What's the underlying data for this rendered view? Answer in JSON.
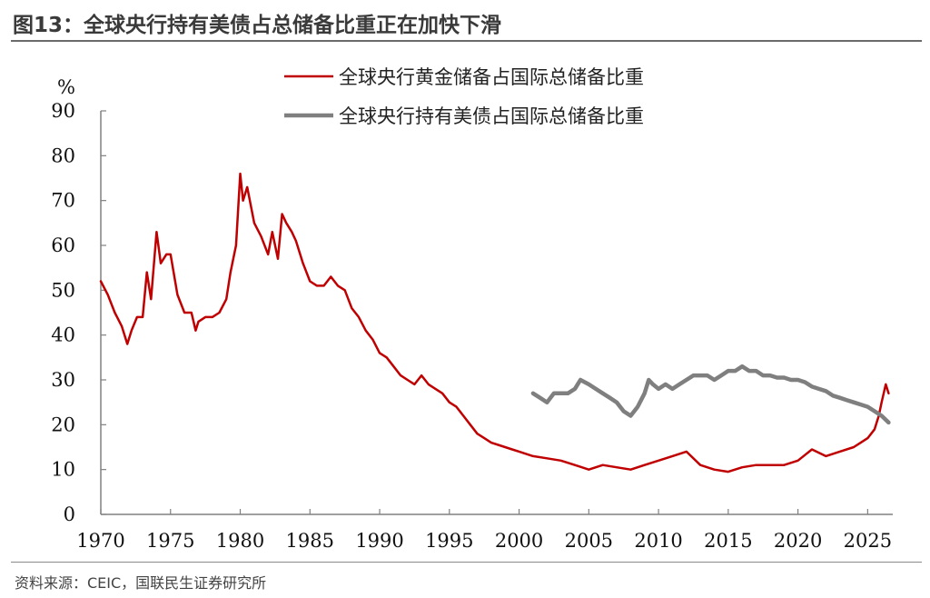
{
  "title": "图13：全球央行持有美债占总储备比重正在加快下滑",
  "source": "资料来源：CEIC，国联民生证券研究所",
  "chart_data": {
    "type": "line",
    "ylabel": "%",
    "ylim": [
      0,
      90
    ],
    "yticks": [
      0,
      10,
      20,
      30,
      40,
      50,
      60,
      70,
      80,
      90
    ],
    "xlim": [
      1970,
      2026.8
    ],
    "xticks": [
      1970,
      1975,
      1980,
      1985,
      1990,
      1995,
      2000,
      2005,
      2010,
      2015,
      2020,
      2025
    ],
    "legend_position": "top-right",
    "grid": false,
    "series": [
      {
        "name": "全球央行黄金储备占国际总储备比重",
        "color": "#c00000",
        "x": [
          1970,
          1970.5,
          1971,
          1971.5,
          1971.9,
          1972.2,
          1972.6,
          1973,
          1973.3,
          1973.6,
          1974,
          1974.3,
          1974.7,
          1975,
          1975.5,
          1976,
          1976.5,
          1976.8,
          1977,
          1977.5,
          1978,
          1978.5,
          1979,
          1979.3,
          1979.7,
          1980,
          1980.2,
          1980.5,
          1981,
          1981.5,
          1982,
          1982.3,
          1982.7,
          1983,
          1983.3,
          1983.7,
          1984,
          1984.5,
          1985,
          1985.5,
          1986,
          1986.5,
          1987,
          1987.5,
          1988,
          1988.5,
          1989,
          1989.5,
          1990,
          1990.5,
          1991,
          1991.5,
          1992,
          1992.5,
          1993,
          1993.5,
          1994,
          1994.5,
          1995,
          1995.5,
          1996,
          1996.5,
          1997,
          1997.5,
          1998,
          1998.5,
          1999,
          1999.5,
          2000,
          2001,
          2002,
          2003,
          2004,
          2005,
          2006,
          2007,
          2008,
          2009,
          2010,
          2011,
          2012,
          2013,
          2014,
          2015,
          2016,
          2017,
          2018,
          2019,
          2020,
          2021,
          2022,
          2023,
          2024,
          2024.5,
          2025,
          2025.5,
          2025.8,
          2026,
          2026.3,
          2026.5
        ],
        "values": [
          52,
          49,
          45,
          42,
          38,
          41,
          44,
          44,
          54,
          48,
          63,
          56,
          58,
          58,
          49,
          45,
          45,
          41,
          43,
          44,
          44,
          45,
          48,
          54,
          60,
          76,
          70,
          73,
          65,
          62,
          58,
          63,
          57,
          67,
          65,
          63,
          61,
          56,
          52,
          51,
          51,
          53,
          51,
          50,
          46,
          44,
          41,
          39,
          36,
          35,
          33,
          31,
          30,
          29,
          31,
          29,
          28,
          27,
          25,
          24,
          22,
          20,
          18,
          17,
          16,
          15.5,
          15,
          14.5,
          14,
          13,
          12.5,
          12,
          11,
          10,
          11,
          10.5,
          10,
          11,
          12,
          13,
          14,
          11,
          10,
          9.5,
          10.5,
          11,
          11,
          11,
          12,
          14.5,
          13,
          14,
          15,
          16,
          17,
          19,
          22,
          25,
          29,
          27
        ],
        "width": 2.5
      },
      {
        "name": "全球央行持有美债占国际总储备比重",
        "color": "#7f7f7f",
        "x": [
          2001,
          2001.5,
          2002,
          2002.5,
          2003,
          2003.5,
          2004,
          2004.4,
          2005,
          2005.5,
          2006,
          2006.5,
          2007,
          2007.5,
          2008,
          2008.5,
          2009,
          2009.3,
          2009.6,
          2010,
          2010.5,
          2011,
          2011.5,
          2012,
          2012.5,
          2013,
          2013.5,
          2014,
          2014.5,
          2015,
          2015.5,
          2016,
          2016.5,
          2017,
          2017.5,
          2018,
          2018.5,
          2019,
          2019.5,
          2020,
          2020.5,
          2021,
          2021.5,
          2022,
          2022.5,
          2023,
          2023.5,
          2024,
          2024.5,
          2025,
          2025.5,
          2026,
          2026.5
        ],
        "values": [
          27,
          26,
          25,
          27,
          27,
          27,
          28,
          30,
          29,
          28,
          27,
          26,
          25,
          23,
          22,
          24,
          27,
          30,
          29,
          28,
          29,
          28,
          29,
          30,
          31,
          31,
          31,
          30,
          31,
          32,
          32,
          33,
          32,
          32,
          31,
          31,
          30.5,
          30.5,
          30,
          30,
          29.5,
          28.5,
          28,
          27.5,
          26.5,
          26,
          25.5,
          25,
          24.5,
          24,
          23,
          22,
          20.5
        ],
        "width": 4.5
      }
    ]
  }
}
